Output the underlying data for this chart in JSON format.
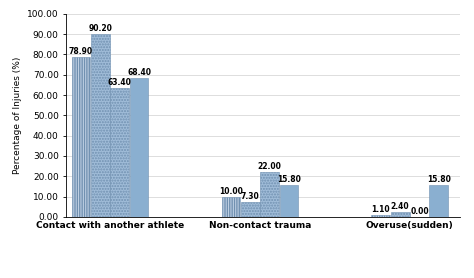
{
  "categories": [
    "Contact with another athlete",
    "Non-contact trauma",
    "Overuse(sudden)"
  ],
  "series": {
    "Men, 2017WTC": [
      78.9,
      10.0,
      1.1
    ],
    "Men, 2019WTC": [
      90.2,
      7.3,
      2.4
    ],
    "Women, 2017WTC": [
      63.4,
      22.0,
      0.0
    ],
    "Women, 2019WTC": [
      68.4,
      15.8,
      15.8
    ]
  },
  "colors": {
    "Men, 2017WTC": "#c5d5e8",
    "Men, 2019WTC": "#a0bcd8",
    "Women, 2017WTC": "#a0bcd8",
    "Women, 2019WTC": "#8aafd0"
  },
  "hatches": {
    "Men, 2017WTC": "|||||||",
    "Men, 2019WTC": "......",
    "Women, 2017WTC": "......",
    "Women, 2019WTC": ""
  },
  "edgecolors": {
    "Men, 2017WTC": "#7090b0",
    "Men, 2019WTC": "#7090b0",
    "Women, 2017WTC": "#7090b0",
    "Women, 2019WTC": "#7090b0"
  },
  "ylabel": "Percentage of Injuries (%)",
  "ylim": [
    0,
    100
  ],
  "yticks": [
    0,
    10,
    20,
    30,
    40,
    50,
    60,
    70,
    80,
    90,
    100
  ],
  "ytick_labels": [
    "0.00",
    "10.00",
    "20.00",
    "30.00",
    "40.00",
    "50.00",
    "60.00",
    "70.00",
    "80.00",
    "90.00",
    "100.00"
  ],
  "bar_width": 0.15,
  "group_positions": [
    0.35,
    1.55,
    2.75
  ],
  "font_size_labels": 5.5,
  "font_size_axis": 6.5,
  "font_size_legend": 6,
  "font_size_xticklabels": 6.5
}
